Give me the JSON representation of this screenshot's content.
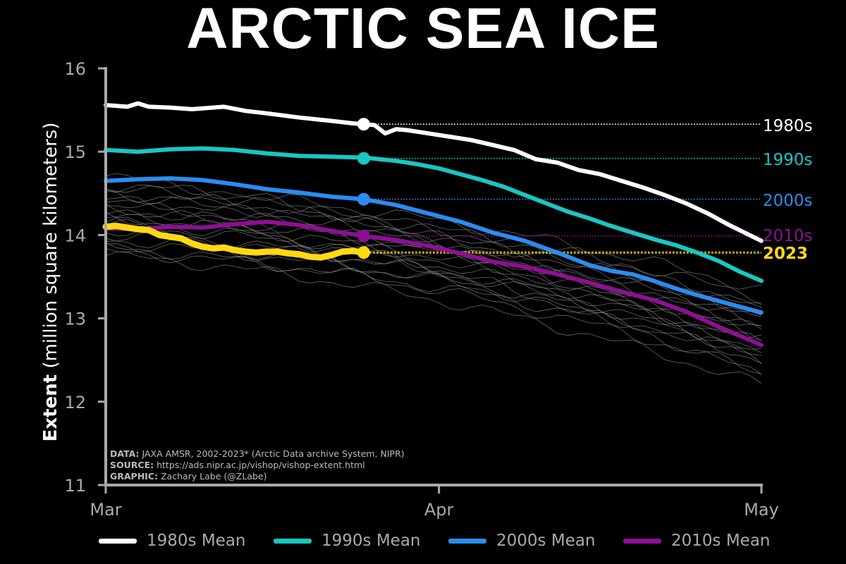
{
  "chart_data": {
    "type": "line",
    "title": "ARCTIC SEA ICE",
    "ylabel_bold": "Extent",
    "ylabel_rest": "(million square kilometers)",
    "xlabel": "",
    "ylim": [
      11,
      16
    ],
    "xlim": [
      0,
      61
    ],
    "yticks": [
      "11",
      "12",
      "13",
      "14",
      "15",
      "16"
    ],
    "xticks": [
      {
        "label": "Mar",
        "x": 0
      },
      {
        "label": "Apr",
        "x": 31
      },
      {
        "label": "May",
        "x": 61
      }
    ],
    "series": [
      {
        "name": "1980s Mean",
        "end_label": "1980s",
        "color": "#ffffff",
        "x": [
          0,
          2,
          3,
          4,
          6,
          8,
          9,
          11,
          13,
          15,
          18,
          21,
          23,
          25,
          26,
          27,
          28,
          30,
          32,
          34,
          36,
          38,
          40,
          42,
          44,
          46,
          48,
          50,
          52,
          54,
          56,
          58,
          61
        ],
        "values": [
          15.56,
          15.54,
          15.58,
          15.54,
          15.53,
          15.51,
          15.52,
          15.54,
          15.49,
          15.46,
          15.41,
          15.37,
          15.34,
          15.32,
          15.22,
          15.27,
          15.26,
          15.22,
          15.18,
          15.14,
          15.08,
          15.02,
          14.91,
          14.87,
          14.78,
          14.73,
          14.65,
          14.57,
          14.48,
          14.38,
          14.26,
          14.12,
          13.93
        ],
        "marker_x": 24,
        "marker_value": 15.33
      },
      {
        "name": "1990s Mean",
        "end_label": "1990s",
        "color": "#1ac6c3",
        "x": [
          0,
          3,
          6,
          9,
          12,
          15,
          18,
          21,
          24,
          27,
          29,
          31,
          33,
          35,
          37,
          39,
          41,
          43,
          45,
          47,
          49,
          51,
          53,
          55,
          57,
          59,
          61
        ],
        "values": [
          15.02,
          15.0,
          15.03,
          15.04,
          15.02,
          14.98,
          14.95,
          14.94,
          14.93,
          14.89,
          14.85,
          14.8,
          14.73,
          14.66,
          14.58,
          14.48,
          14.38,
          14.28,
          14.2,
          14.11,
          14.03,
          13.95,
          13.88,
          13.79,
          13.69,
          13.56,
          13.45
        ],
        "marker_x": 24,
        "marker_value": 14.92
      },
      {
        "name": "2000s Mean",
        "end_label": "2000s",
        "color": "#2a8cf0",
        "x": [
          0,
          3,
          6,
          9,
          12,
          15,
          18,
          21,
          24,
          27,
          30,
          33,
          36,
          39,
          42,
          45,
          47,
          49,
          51,
          53,
          55,
          57,
          59,
          61
        ],
        "values": [
          14.65,
          14.67,
          14.68,
          14.66,
          14.61,
          14.55,
          14.51,
          14.46,
          14.43,
          14.36,
          14.26,
          14.16,
          14.03,
          13.93,
          13.79,
          13.64,
          13.57,
          13.53,
          13.45,
          13.36,
          13.28,
          13.21,
          13.14,
          13.07
        ],
        "marker_x": 24,
        "marker_value": 14.43
      },
      {
        "name": "2010s Mean",
        "end_label": "2010s",
        "color": "#8e0f95",
        "x": [
          0,
          3,
          6,
          9,
          12,
          15,
          18,
          21,
          24,
          27,
          30,
          33,
          36,
          39,
          42,
          45,
          48,
          51,
          54,
          57,
          59,
          61
        ],
        "values": [
          14.08,
          14.07,
          14.1,
          14.09,
          14.13,
          14.16,
          14.12,
          14.05,
          13.99,
          13.94,
          13.87,
          13.78,
          13.68,
          13.62,
          13.53,
          13.43,
          13.32,
          13.22,
          13.08,
          12.9,
          12.79,
          12.68
        ],
        "marker_x": 24,
        "marker_value": 13.99
      },
      {
        "name": "2023",
        "end_label": "2023",
        "color": "#ffd912",
        "x": [
          0,
          1,
          2,
          3,
          4,
          5,
          6,
          7,
          8,
          9,
          10,
          11,
          12,
          13,
          14,
          15,
          16,
          17,
          18,
          19,
          20,
          21,
          22,
          23,
          24
        ],
        "values": [
          14.1,
          14.11,
          14.09,
          14.07,
          14.06,
          14.0,
          13.98,
          13.96,
          13.9,
          13.86,
          13.84,
          13.85,
          13.82,
          13.8,
          13.79,
          13.8,
          13.8,
          13.78,
          13.77,
          13.74,
          13.73,
          13.76,
          13.8,
          13.81,
          13.79
        ],
        "marker_x": 24,
        "marker_value": 13.79
      }
    ],
    "background_years": {
      "color": "#8a8a8a",
      "count": 20,
      "start": [
        13.75,
        13.85,
        13.95,
        14.05,
        14.12,
        14.2,
        14.28,
        14.35,
        14.42,
        14.5,
        14.6,
        14.7,
        13.8,
        13.9,
        14.0,
        14.15,
        14.3,
        14.45,
        14.55,
        14.25
      ],
      "end": [
        12.2,
        12.35,
        12.5,
        12.6,
        12.7,
        12.8,
        12.9,
        13.0,
        13.1,
        13.25,
        13.35,
        12.45,
        12.55,
        12.65,
        12.75,
        12.85,
        12.95,
        13.05,
        13.15,
        12.3
      ]
    }
  },
  "notes": {
    "data_label": "DATA:",
    "data_text": " JAXA AMSR, 2002-2023* (Arctic Data archive System, NIPR)",
    "source_label": "SOURCE:",
    "source_text": " https://ads.nipr.ac.jp/vishop/vishop-extent.html",
    "graphic_label": "GRAPHIC:",
    "graphic_text": " Zachary Labe (@ZLabe)"
  },
  "legend": [
    {
      "label": "1980s Mean",
      "color": "#ffffff"
    },
    {
      "label": "1990s Mean",
      "color": "#1ac6c3"
    },
    {
      "label": "2000s Mean",
      "color": "#2a8cf0"
    },
    {
      "label": "2010s Mean",
      "color": "#8e0f95"
    }
  ]
}
